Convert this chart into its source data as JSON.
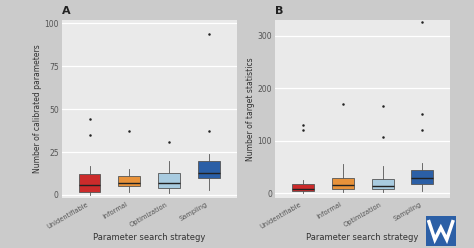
{
  "panel_A": {
    "title": "A",
    "ylabel": "Number of calibrated parameters",
    "xlabel": "Parameter search strategy",
    "ylim": [
      -2,
      102
    ],
    "yticks": [
      0,
      25,
      50,
      75,
      100
    ],
    "yticklabels": [
      "0",
      "25",
      "50",
      "75",
      "100"
    ],
    "categories": [
      "Unidentifiable",
      "Informal",
      "Optimization",
      "Sampling"
    ],
    "colors": [
      "#CC2B2B",
      "#E8923A",
      "#A8CBE0",
      "#2B5FA6"
    ],
    "box_stats": [
      {
        "med": 6,
        "q1": 2,
        "q3": 12,
        "whislo": 0,
        "whishi": 17,
        "fliers": [
          35,
          44
        ]
      },
      {
        "med": 7,
        "q1": 5,
        "q3": 11,
        "whislo": 2,
        "whishi": 15,
        "fliers": [
          37
        ]
      },
      {
        "med": 7,
        "q1": 4,
        "q3": 13,
        "whislo": 1,
        "whishi": 20,
        "fliers": [
          31
        ]
      },
      {
        "med": 13,
        "q1": 10,
        "q3": 20,
        "whislo": 3,
        "whishi": 24,
        "fliers": [
          37,
          94
        ]
      }
    ]
  },
  "panel_B": {
    "title": "B",
    "ylabel": "Number of target statistics",
    "xlabel": "Parameter search strategy",
    "ylim": [
      -10,
      330
    ],
    "yticks": [
      0,
      100,
      200,
      300
    ],
    "yticklabels": [
      "0",
      "100",
      "200",
      "300"
    ],
    "categories": [
      "Unidentifiable",
      "Informal",
      "Optimization",
      "Sampling"
    ],
    "colors": [
      "#CC2B2B",
      "#E8923A",
      "#A8CBE0",
      "#2B5FA6"
    ],
    "box_stats": [
      {
        "med": 8,
        "q1": 4,
        "q3": 18,
        "whislo": 1,
        "whishi": 25,
        "fliers": [
          120,
          130
        ]
      },
      {
        "med": 15,
        "q1": 8,
        "q3": 28,
        "whislo": 2,
        "whishi": 55,
        "fliers": [
          170
        ]
      },
      {
        "med": 14,
        "q1": 7,
        "q3": 26,
        "whislo": 2,
        "whishi": 52,
        "fliers": [
          107,
          165
        ]
      },
      {
        "med": 28,
        "q1": 18,
        "q3": 45,
        "whislo": 5,
        "whishi": 58,
        "fliers": [
          120,
          150,
          325
        ]
      }
    ]
  },
  "plot_bg": "#EAEAEA",
  "grid_color": "#FFFFFF",
  "fig_bg": "#CBCBCB",
  "spine_color": "#AAAAAA",
  "tick_color": "#555555",
  "label_color": "#333333"
}
